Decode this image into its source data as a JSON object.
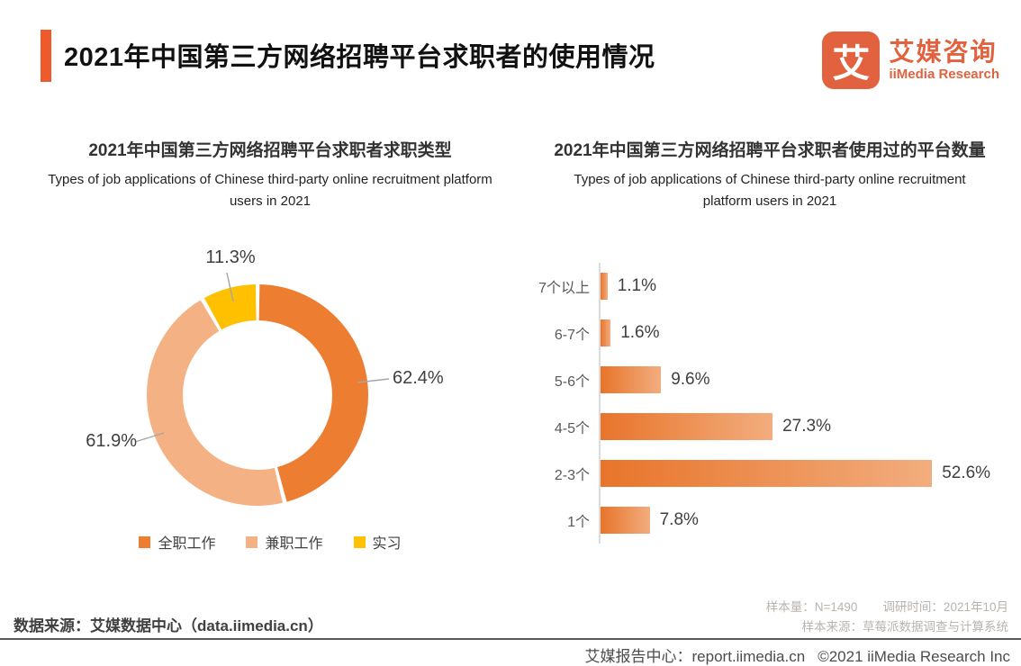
{
  "header": {
    "title": "2021年中国第三方网络招聘平台求职者的使用情况",
    "logo": {
      "mark_char": "艾",
      "brand_cn": "艾媒咨询",
      "brand_en": "iiMedia Research"
    }
  },
  "colors": {
    "accent": "#EE5A2B",
    "logo_orange": "#E2613E",
    "donut_orange": "#ED7D31",
    "donut_light_orange": "#F4B183",
    "donut_yellow": "#FFC000",
    "bar_gradient_start": "#E8742A",
    "bar_gradient_end": "#F2AD7E"
  },
  "chart_data": [
    {
      "type": "pie",
      "variant": "donut",
      "title": "2021年中国第三方网络招聘平台求职者求职类型",
      "subtitle_en": "Types of job applications of Chinese third-party online recruitment platform users in 2021",
      "labels": [
        "全职工作",
        "兼职工作",
        "实习"
      ],
      "values": [
        62.4,
        61.9,
        11.3
      ],
      "unit": "%",
      "colors": [
        "#ED7D31",
        "#F4B183",
        "#FFC000"
      ],
      "legend_position": "bottom",
      "start_angle_deg": 0,
      "direction": "clockwise"
    },
    {
      "type": "bar",
      "orientation": "horizontal",
      "title": "2021年中国第三方网络招聘平台求职者使用过的平台数量",
      "subtitle_en": "Types of job applications of Chinese third-party online recruitment platform users in 2021",
      "categories": [
        "7个以上",
        "6-7个",
        "5-6个",
        "4-5个",
        "2-3个",
        "1个"
      ],
      "values": [
        1.1,
        1.6,
        9.6,
        27.3,
        52.6,
        7.8
      ],
      "unit": "%",
      "xlim": [
        0,
        60
      ],
      "grid": false,
      "bar_color": "orange-gradient"
    }
  ],
  "footer": {
    "source_left": "数据来源：艾媒数据中心（data.iimedia.cn）",
    "sample_size": "样本量：N=1490",
    "survey_time": "调研时间：2021年10月",
    "sample_source": "样本来源：草莓派数据调查与计算系统",
    "report_center": "艾媒报告中心：report.iimedia.cn",
    "copyright": "©2021  iiMedia Research Inc"
  }
}
